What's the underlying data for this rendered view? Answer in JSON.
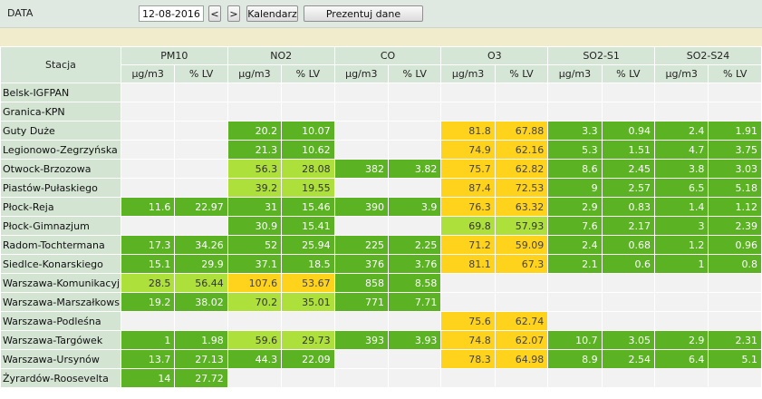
{
  "toolbar": {
    "date_label": "DATA",
    "date_value": "12-08-2016",
    "prev_label": "<",
    "next_label": ">",
    "calendar_label": "Kalendarz",
    "present_label": "Prezentuj dane"
  },
  "table": {
    "station_header": "Stacja",
    "groups": [
      "PM10",
      "NO2",
      "CO",
      "O3",
      "SO2-S1",
      "SO2-S24"
    ],
    "subheaders": [
      "µg/m3",
      "% LV"
    ],
    "colors": {
      "empty": "#f2f2f2",
      "green": "#5bb324",
      "lightgreen": "#aee03c",
      "yellow": "#ffd21c"
    },
    "rows": [
      {
        "station": "Belsk-IGFPAN",
        "cells": [
          [
            "",
            ""
          ],
          [
            "",
            ""
          ],
          [
            "",
            ""
          ],
          [
            "",
            ""
          ],
          [
            "",
            ""
          ],
          [
            "",
            ""
          ]
        ],
        "levels": [
          "e",
          "e",
          "e",
          "e",
          "e",
          "e"
        ]
      },
      {
        "station": "Granica-KPN",
        "cells": [
          [
            "",
            ""
          ],
          [
            "",
            ""
          ],
          [
            "",
            ""
          ],
          [
            "",
            ""
          ],
          [
            "",
            ""
          ],
          [
            "",
            ""
          ]
        ],
        "levels": [
          "e",
          "e",
          "e",
          "e",
          "e",
          "e"
        ]
      },
      {
        "station": "Guty Duże",
        "cells": [
          [
            "",
            ""
          ],
          [
            "20.2",
            "10.07"
          ],
          [
            "",
            ""
          ],
          [
            "81.8",
            "67.88"
          ],
          [
            "3.3",
            "0.94"
          ],
          [
            "2.4",
            "1.91"
          ]
        ],
        "levels": [
          "e",
          "g",
          "e",
          "y",
          "g",
          "g"
        ]
      },
      {
        "station": "Legionowo-Zegrzyńska",
        "cells": [
          [
            "",
            ""
          ],
          [
            "21.3",
            "10.62"
          ],
          [
            "",
            ""
          ],
          [
            "74.9",
            "62.16"
          ],
          [
            "5.3",
            "1.51"
          ],
          [
            "4.7",
            "3.75"
          ]
        ],
        "levels": [
          "e",
          "g",
          "e",
          "y",
          "g",
          "g"
        ]
      },
      {
        "station": "Otwock-Brzozowa",
        "cells": [
          [
            "",
            ""
          ],
          [
            "56.3",
            "28.08"
          ],
          [
            "382",
            "3.82"
          ],
          [
            "75.7",
            "62.82"
          ],
          [
            "8.6",
            "2.45"
          ],
          [
            "3.8",
            "3.03"
          ]
        ],
        "levels": [
          "e",
          "l",
          "g",
          "y",
          "g",
          "g"
        ]
      },
      {
        "station": "Piastów-Pułaskiego",
        "cells": [
          [
            "",
            ""
          ],
          [
            "39.2",
            "19.55"
          ],
          [
            "",
            ""
          ],
          [
            "87.4",
            "72.53"
          ],
          [
            "9",
            "2.57"
          ],
          [
            "6.5",
            "5.18"
          ]
        ],
        "levels": [
          "e",
          "l",
          "e",
          "y",
          "g",
          "g"
        ]
      },
      {
        "station": "Płock-Reja",
        "cells": [
          [
            "11.6",
            "22.97"
          ],
          [
            "31",
            "15.46"
          ],
          [
            "390",
            "3.9"
          ],
          [
            "76.3",
            "63.32"
          ],
          [
            "2.9",
            "0.83"
          ],
          [
            "1.4",
            "1.12"
          ]
        ],
        "levels": [
          "g",
          "g",
          "g",
          "y",
          "g",
          "g"
        ]
      },
      {
        "station": "Płock-Gimnazjum",
        "cells": [
          [
            "",
            ""
          ],
          [
            "30.9",
            "15.41"
          ],
          [
            "",
            ""
          ],
          [
            "69.8",
            "57.93"
          ],
          [
            "7.6",
            "2.17"
          ],
          [
            "3",
            "2.39"
          ]
        ],
        "levels": [
          "e",
          "g",
          "e",
          "l",
          "g",
          "g"
        ]
      },
      {
        "station": "Radom-Tochtermana",
        "cells": [
          [
            "17.3",
            "34.26"
          ],
          [
            "52",
            "25.94"
          ],
          [
            "225",
            "2.25"
          ],
          [
            "71.2",
            "59.09"
          ],
          [
            "2.4",
            "0.68"
          ],
          [
            "1.2",
            "0.96"
          ]
        ],
        "levels": [
          "g",
          "g",
          "g",
          "y",
          "g",
          "g"
        ]
      },
      {
        "station": "Siedlce-Konarskiego",
        "cells": [
          [
            "15.1",
            "29.9"
          ],
          [
            "37.1",
            "18.5"
          ],
          [
            "376",
            "3.76"
          ],
          [
            "81.1",
            "67.3"
          ],
          [
            "2.1",
            "0.6"
          ],
          [
            "1",
            "0.8"
          ]
        ],
        "levels": [
          "g",
          "g",
          "g",
          "y",
          "g",
          "g"
        ]
      },
      {
        "station": "Warszawa-Komunikacyjna",
        "cells": [
          [
            "28.5",
            "56.44"
          ],
          [
            "107.6",
            "53.67"
          ],
          [
            "858",
            "8.58"
          ],
          [
            "",
            ""
          ],
          [
            "",
            ""
          ],
          [
            "",
            ""
          ]
        ],
        "levels": [
          "l",
          "y",
          "g",
          "e",
          "e",
          "e"
        ]
      },
      {
        "station": "Warszawa-Marszałkowska",
        "cells": [
          [
            "19.2",
            "38.02"
          ],
          [
            "70.2",
            "35.01"
          ],
          [
            "771",
            "7.71"
          ],
          [
            "",
            ""
          ],
          [
            "",
            ""
          ],
          [
            "",
            ""
          ]
        ],
        "levels": [
          "g",
          "l",
          "g",
          "e",
          "e",
          "e"
        ]
      },
      {
        "station": "Warszawa-Podleśna",
        "cells": [
          [
            "",
            ""
          ],
          [
            "",
            ""
          ],
          [
            "",
            ""
          ],
          [
            "75.6",
            "62.74"
          ],
          [
            "",
            ""
          ],
          [
            "",
            ""
          ]
        ],
        "levels": [
          "e",
          "e",
          "e",
          "y",
          "e",
          "e"
        ]
      },
      {
        "station": "Warszawa-Targówek",
        "cells": [
          [
            "1",
            "1.98"
          ],
          [
            "59.6",
            "29.73"
          ],
          [
            "393",
            "3.93"
          ],
          [
            "74.8",
            "62.07"
          ],
          [
            "10.7",
            "3.05"
          ],
          [
            "2.9",
            "2.31"
          ]
        ],
        "levels": [
          "g",
          "l",
          "g",
          "y",
          "g",
          "g"
        ]
      },
      {
        "station": "Warszawa-Ursynów",
        "cells": [
          [
            "13.7",
            "27.13"
          ],
          [
            "44.3",
            "22.09"
          ],
          [
            "",
            ""
          ],
          [
            "78.3",
            "64.98"
          ],
          [
            "8.9",
            "2.54"
          ],
          [
            "6.4",
            "5.1"
          ]
        ],
        "levels": [
          "g",
          "g",
          "e",
          "y",
          "g",
          "g"
        ]
      },
      {
        "station": "Żyrardów-Roosevelta",
        "cells": [
          [
            "14",
            "27.72"
          ],
          [
            "",
            ""
          ],
          [
            "",
            ""
          ],
          [
            "",
            ""
          ],
          [
            "",
            ""
          ],
          [
            "",
            ""
          ]
        ],
        "levels": [
          "g",
          "e",
          "e",
          "e",
          "e",
          "e"
        ]
      }
    ]
  }
}
